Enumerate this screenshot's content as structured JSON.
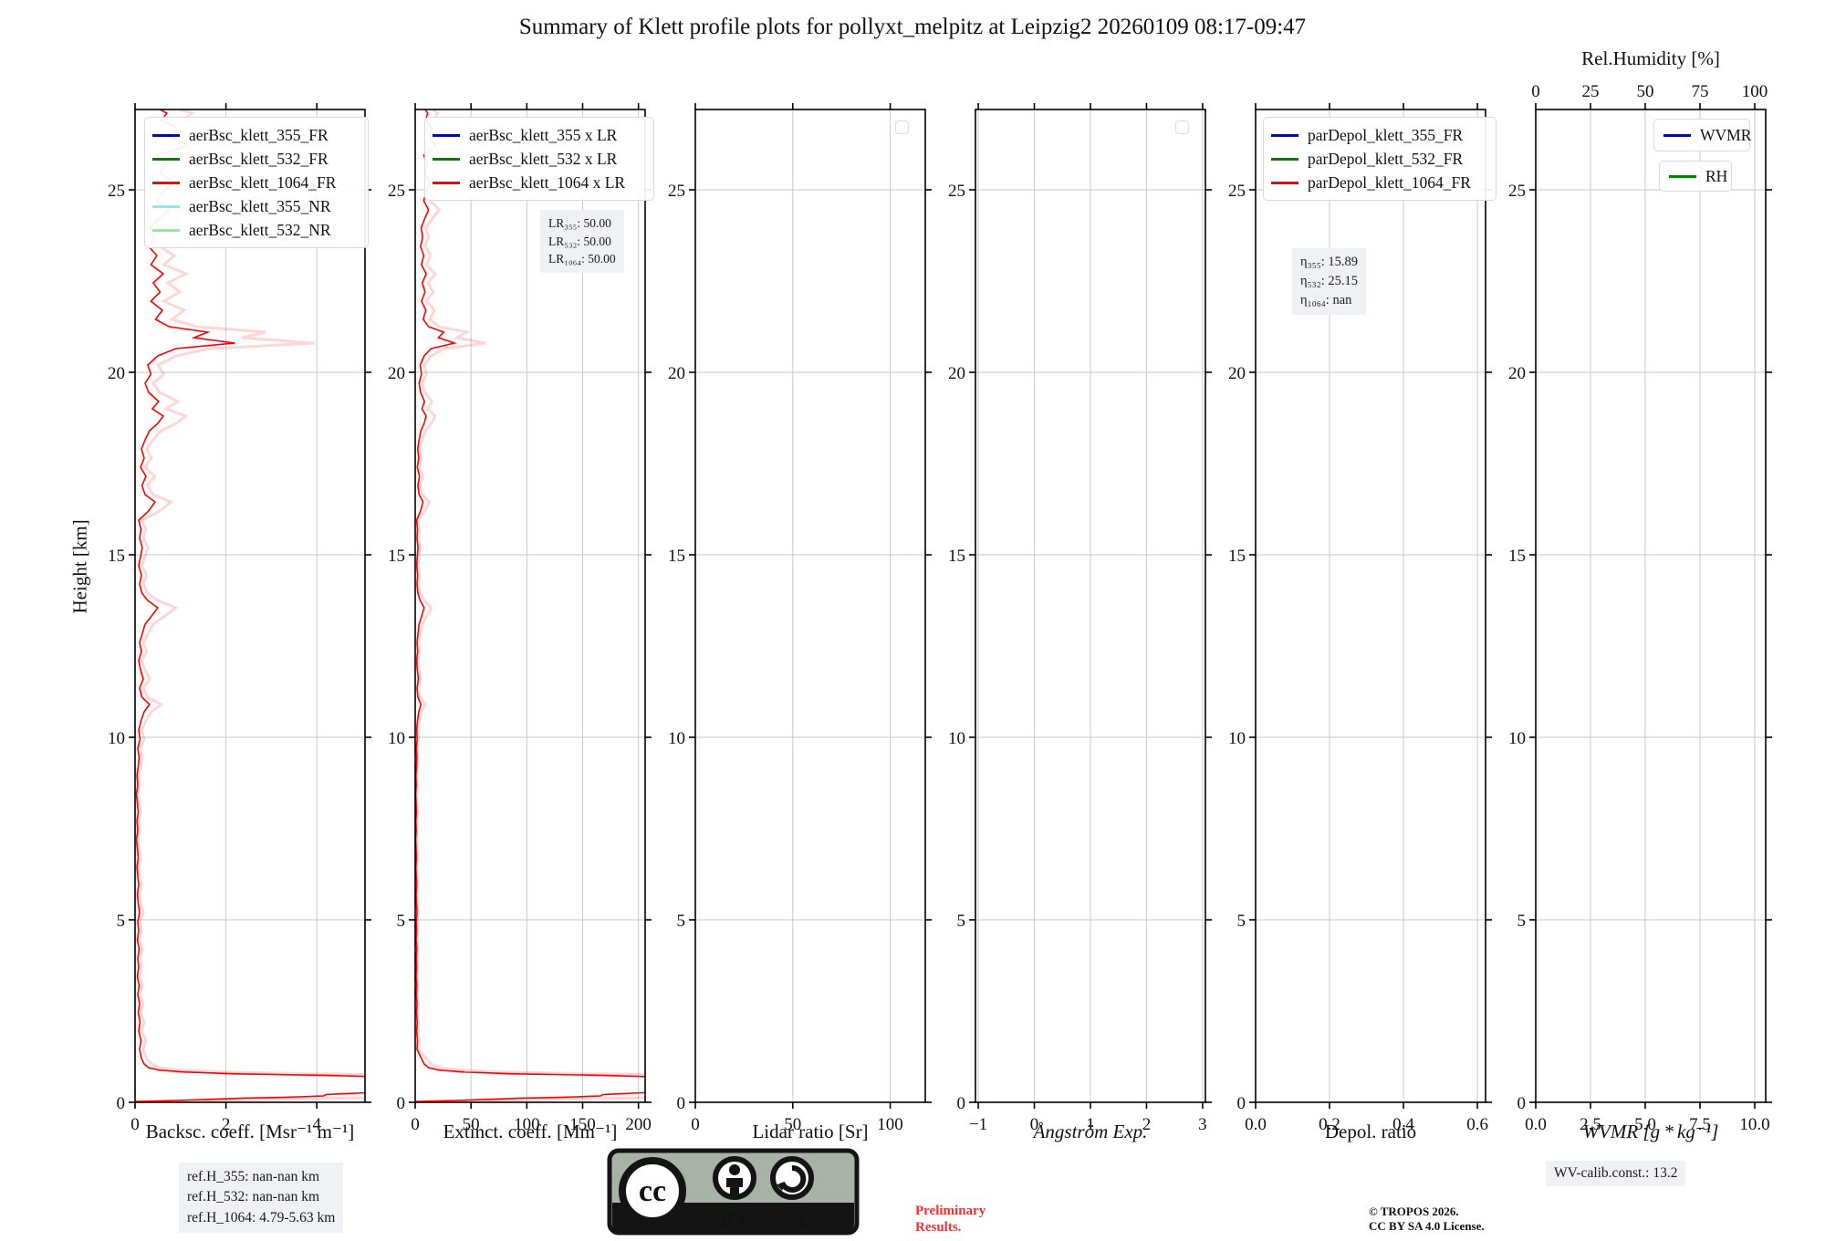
{
  "title": "Summary of Klett profile plots for pollyxt_melpitz at Leipzig2 20260109 08:17-09:47",
  "chart_data": {
    "type": "line",
    "title": "Summary of Klett profile plots for pollyxt_melpitz at Leipzig2 20260109 08:17-09:47",
    "ylabel": "Height [km]",
    "yrange": [
      0,
      27.2
    ],
    "yticks": [
      0,
      5,
      10,
      15,
      20,
      25
    ],
    "grid": true,
    "panels": [
      {
        "xlabel": "Backsc. coeff. [Msr⁻¹ m⁻¹]",
        "xrange": [
          0,
          5.06
        ],
        "xticks": {
          "vals": [
            0,
            2,
            4
          ],
          "labels": [
            "0",
            "2",
            "4"
          ]
        },
        "legend": [
          {
            "label": "aerBsc_klett_355_FR",
            "color": "#0000e6"
          },
          {
            "label": "aerBsc_klett_532_FR",
            "color": "#008000"
          },
          {
            "label": "aerBsc_klett_1064_FR",
            "color": "#ff0000"
          },
          {
            "label": "aerBsc_klett_355_NR",
            "color": "#84eeee"
          },
          {
            "label": "aerBsc_klett_532_NR",
            "color": "#90ee90"
          }
        ],
        "series": {
          "name": "aerBsc_klett_1064_FR",
          "low_scale": 1,
          "noise_scale": 1,
          "band_scale": 1.8,
          "color": "#ff0000"
        }
      },
      {
        "xlabel": "Extinct. coeff. [Mm⁻¹]",
        "xrange": [
          0,
          206
        ],
        "xticks": {
          "vals": [
            0,
            50,
            100,
            150,
            200
          ],
          "labels": [
            "0",
            "50",
            "100",
            "150",
            "200"
          ]
        },
        "legend": [
          {
            "label": "aerBsc_klett_355 x LR",
            "color": "#0000e6"
          },
          {
            "label": "aerBsc_klett_532 x LR",
            "color": "#008000"
          },
          {
            "label": "aerBsc_klett_1064 x LR",
            "color": "#ff0000"
          }
        ],
        "annotation": {
          "lines": [
            "LR₃₅₅: 50.00",
            "LR₅₃₂: 50.00",
            "LR₁₀₆₄: 50.00"
          ]
        },
        "series": {
          "name": "aerBsc_klett_1064 x LR",
          "low_scale": 40,
          "noise_scale": 16,
          "band_scale": 1.8,
          "color": "#ff0000"
        }
      },
      {
        "xlabel": "Lidar ratio [Sr]",
        "xrange": [
          0,
          118
        ],
        "xticks": {
          "vals": [
            0,
            50,
            100
          ],
          "labels": [
            "0",
            "50",
            "100"
          ]
        },
        "empty_legend": true
      },
      {
        "xlabel": "Ångström Exp.",
        "xrange": [
          -1.05,
          3.05
        ],
        "xticks": {
          "vals": [
            -1,
            0,
            1,
            2,
            3
          ],
          "labels": [
            "−1",
            "0",
            "1",
            "2",
            "3"
          ]
        },
        "empty_legend": true
      },
      {
        "xlabel": "Depol. ratio",
        "xrange": [
          0,
          0.622
        ],
        "xticks": {
          "vals": [
            0,
            0.2,
            0.4,
            0.6
          ],
          "labels": [
            "0.0",
            "0.2",
            "0.4",
            "0.6"
          ]
        },
        "legend": [
          {
            "label": "parDepol_klett_355_FR",
            "color": "#0000e6"
          },
          {
            "label": "parDepol_klett_532_FR",
            "color": "#008000"
          },
          {
            "label": "parDepol_klett_1064_FR",
            "color": "#ff0000"
          }
        ],
        "annotation": {
          "lines": [
            "η₃₅₅: 15.89",
            "η₅₃₂: 25.15",
            "η₁₀₆₄: nan"
          ]
        }
      },
      {
        "xlabel": "WVMR [g * kg⁻¹]",
        "xrange": [
          0,
          10.5
        ],
        "xticks": {
          "vals": [
            0,
            2.5,
            5,
            7.5,
            10
          ],
          "labels": [
            "0.0",
            "2.5",
            "5.0",
            "7.5",
            "10.0"
          ]
        },
        "top_axis": {
          "label": "Rel.Humidity [%]",
          "range": [
            0,
            105
          ],
          "vals": [
            0,
            25,
            50,
            75,
            100
          ],
          "labels": [
            "0",
            "25",
            "50",
            "75",
            "100"
          ]
        },
        "legend_wvmr": {
          "label": "WVMR",
          "color": "#0000e6"
        },
        "legend_rh": {
          "label": "RH",
          "color": "#008000"
        }
      }
    ],
    "profile_low": [
      [
        0.02,
        0.02
      ],
      [
        0.35,
        0.03
      ],
      [
        0.9,
        0.05
      ],
      [
        1.6,
        0.08
      ],
      [
        2.3,
        0.11
      ],
      [
        3.0,
        0.13
      ],
      [
        3.6,
        0.15
      ],
      [
        4.05,
        0.17
      ],
      [
        4.15,
        0.175
      ],
      [
        4.2,
        0.21
      ],
      [
        4.5,
        0.23
      ],
      [
        4.85,
        0.25
      ],
      [
        5.3,
        0.27
      ],
      [
        7.5,
        0.33
      ],
      [
        7.5,
        0.62
      ],
      [
        4.2,
        0.74
      ],
      [
        2.2,
        0.78
      ],
      [
        1.1,
        0.83
      ],
      [
        0.55,
        0.88
      ],
      [
        0.3,
        0.95
      ],
      [
        0.2,
        1.05
      ],
      [
        0.14,
        1.2
      ]
    ],
    "profile_noise": [
      [
        0.1,
        1.45
      ],
      [
        0.13,
        1.7
      ],
      [
        0.08,
        1.95
      ],
      [
        0.11,
        2.2
      ],
      [
        0.07,
        2.45
      ],
      [
        0.1,
        2.7
      ],
      [
        0.06,
        2.95
      ],
      [
        0.09,
        3.2
      ],
      [
        0.05,
        3.45
      ],
      [
        0.08,
        3.7
      ],
      [
        0.06,
        3.95
      ],
      [
        0.09,
        4.2
      ],
      [
        0.05,
        4.45
      ],
      [
        0.08,
        4.7
      ],
      [
        0.06,
        4.95
      ],
      [
        0.1,
        5.2
      ],
      [
        0.07,
        5.45
      ],
      [
        0.05,
        5.7
      ],
      [
        0.08,
        5.95
      ],
      [
        0.06,
        6.2
      ],
      [
        0.04,
        6.45
      ],
      [
        0.07,
        6.7
      ],
      [
        0.05,
        6.95
      ],
      [
        0.03,
        7.2
      ],
      [
        0.06,
        7.45
      ],
      [
        0.04,
        7.7
      ],
      [
        0.07,
        7.95
      ],
      [
        0.05,
        8.2
      ],
      [
        0.03,
        8.45
      ],
      [
        0.06,
        8.7
      ],
      [
        0.04,
        8.95
      ],
      [
        0.07,
        9.2
      ],
      [
        0.09,
        9.45
      ],
      [
        0.06,
        9.7
      ],
      [
        0.11,
        9.95
      ],
      [
        0.08,
        10.2
      ],
      [
        0.13,
        10.45
      ],
      [
        0.2,
        10.7
      ],
      [
        0.32,
        10.9
      ],
      [
        0.15,
        11.1
      ],
      [
        0.1,
        11.35
      ],
      [
        0.18,
        11.6
      ],
      [
        0.12,
        11.85
      ],
      [
        0.08,
        12.1
      ],
      [
        0.14,
        12.35
      ],
      [
        0.1,
        12.6
      ],
      [
        0.16,
        12.85
      ],
      [
        0.22,
        13.1
      ],
      [
        0.38,
        13.35
      ],
      [
        0.5,
        13.55
      ],
      [
        0.28,
        13.75
      ],
      [
        0.15,
        13.95
      ],
      [
        0.1,
        14.2
      ],
      [
        0.14,
        14.45
      ],
      [
        0.08,
        14.7
      ],
      [
        0.12,
        14.95
      ],
      [
        0.16,
        15.2
      ],
      [
        0.1,
        15.45
      ],
      [
        0.13,
        15.7
      ],
      [
        0.08,
        15.95
      ],
      [
        0.3,
        16.2
      ],
      [
        0.44,
        16.45
      ],
      [
        0.22,
        16.65
      ],
      [
        0.15,
        16.9
      ],
      [
        0.24,
        17.15
      ],
      [
        0.12,
        17.4
      ],
      [
        0.2,
        17.65
      ],
      [
        0.14,
        17.9
      ],
      [
        0.22,
        18.15
      ],
      [
        0.32,
        18.4
      ],
      [
        0.5,
        18.6
      ],
      [
        0.62,
        18.8
      ],
      [
        0.38,
        19.0
      ],
      [
        0.52,
        19.2
      ],
      [
        0.3,
        19.45
      ],
      [
        0.22,
        19.7
      ],
      [
        0.35,
        19.95
      ],
      [
        0.28,
        20.2
      ],
      [
        0.5,
        20.45
      ],
      [
        0.9,
        20.65
      ],
      [
        2.2,
        20.8
      ],
      [
        1.3,
        20.95
      ],
      [
        1.6,
        21.1
      ],
      [
        0.75,
        21.25
      ],
      [
        0.45,
        21.45
      ],
      [
        0.6,
        21.7
      ],
      [
        0.35,
        21.95
      ],
      [
        0.55,
        22.2
      ],
      [
        0.4,
        22.45
      ],
      [
        0.62,
        22.7
      ],
      [
        0.35,
        22.95
      ],
      [
        0.48,
        23.2
      ],
      [
        0.3,
        23.45
      ],
      [
        0.42,
        23.7
      ],
      [
        0.33,
        23.95
      ],
      [
        0.52,
        24.2
      ],
      [
        0.75,
        24.45
      ],
      [
        0.48,
        24.7
      ],
      [
        0.62,
        24.95
      ],
      [
        0.85,
        25.2
      ],
      [
        0.55,
        25.45
      ],
      [
        0.68,
        25.7
      ],
      [
        0.48,
        25.95
      ],
      [
        1.15,
        26.2
      ],
      [
        0.8,
        26.45
      ],
      [
        0.92,
        26.7
      ],
      [
        0.58,
        26.9
      ],
      [
        0.7,
        27.1
      ],
      [
        0.55,
        27.2
      ]
    ]
  },
  "footer": {
    "ref_lines": [
      "ref.H_355: nan-nan km",
      "ref.H_532: nan-nan km",
      "ref.H_1064: 4.79-5.63 km"
    ],
    "wv_calib": "WV-calib.const.: 13.2",
    "preliminary": [
      "Preliminary",
      "Results."
    ],
    "copyright": [
      "© TROPOS 2026.",
      "CC BY SA 4.0 License."
    ],
    "cc": {
      "logo": "cc",
      "by": "BY",
      "sa": "SA"
    }
  }
}
